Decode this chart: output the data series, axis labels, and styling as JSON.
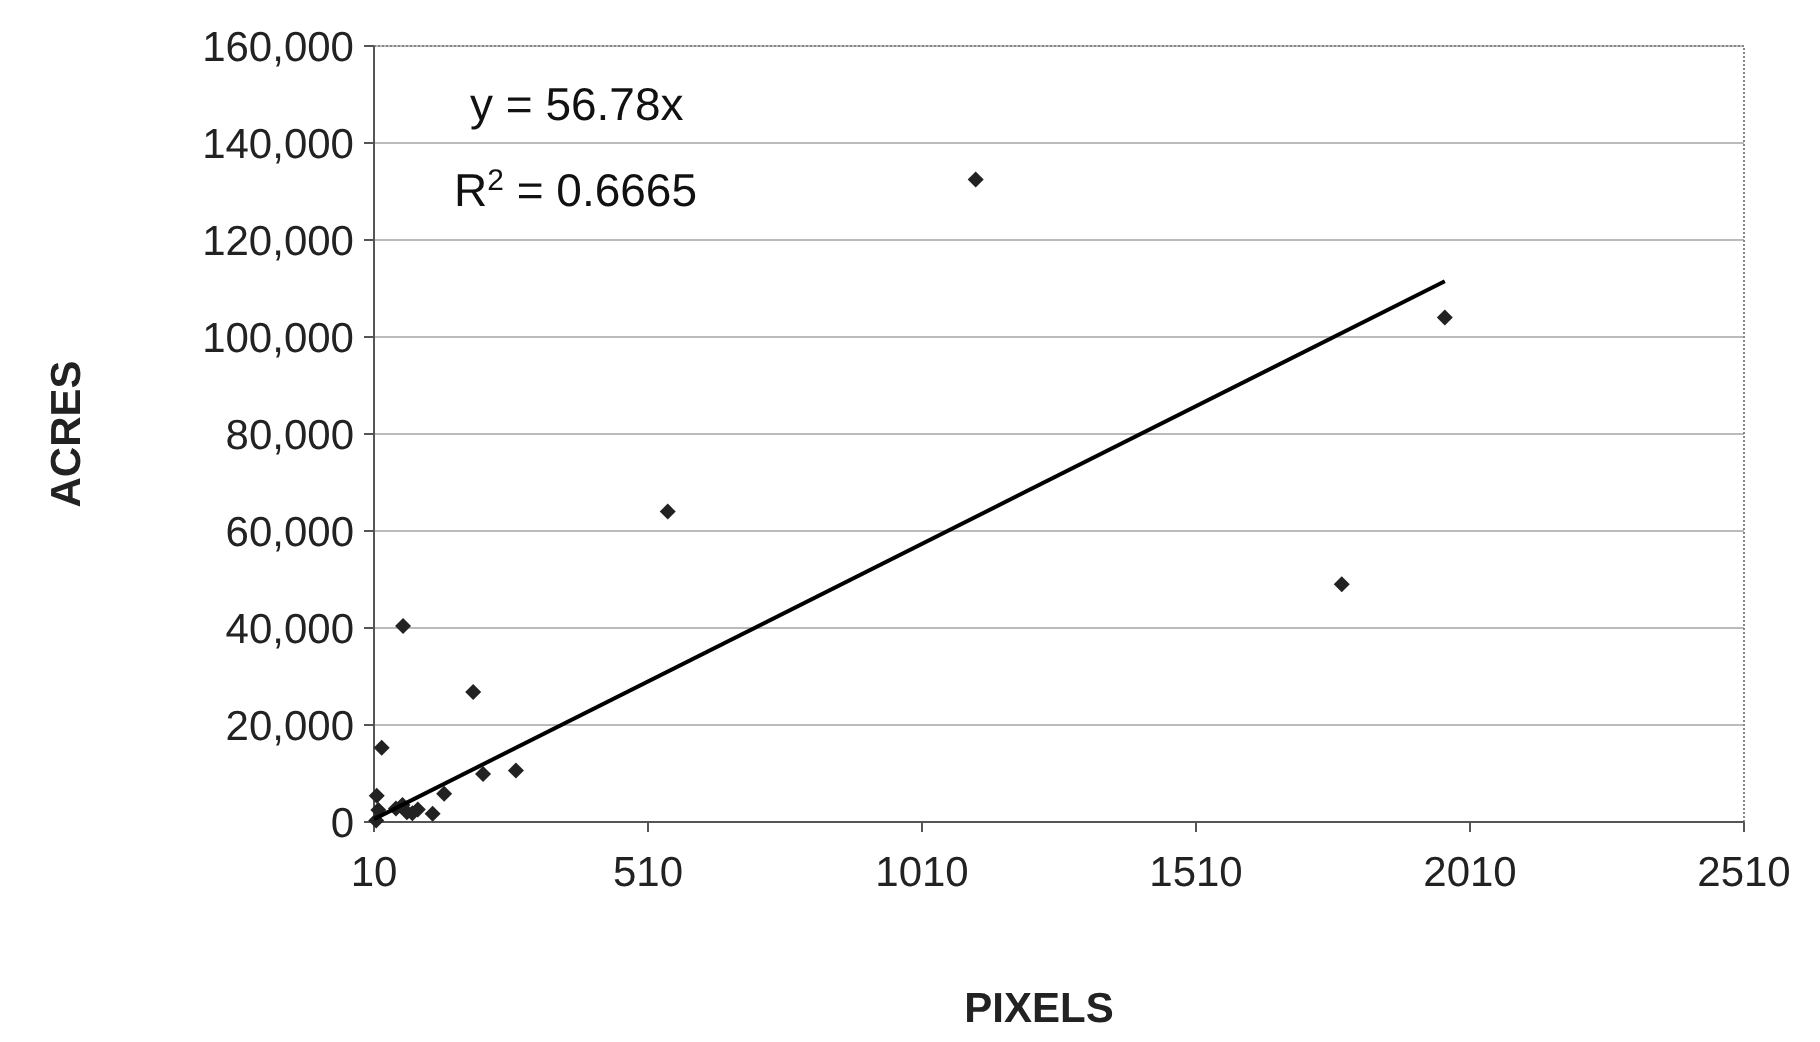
{
  "chart_data": {
    "type": "scatter",
    "xlabel": "PIXELS",
    "ylabel": "ACRES",
    "annotations": [
      "y = 56.78x",
      "R$^{2}$ = 0.6665"
    ],
    "xlim": [
      10,
      2510
    ],
    "xticks": [
      10,
      510,
      1010,
      1510,
      2010,
      2510
    ],
    "ylim": [
      0,
      160000
    ],
    "yticks": [
      {
        "value": 0,
        "label": "0"
      },
      {
        "value": 20000,
        "label": "20,000"
      },
      {
        "value": 40000,
        "label": "40,000"
      },
      {
        "value": 60000,
        "label": "60,000"
      },
      {
        "value": 80000,
        "label": "80,000"
      },
      {
        "value": 100000,
        "label": "100,000"
      },
      {
        "value": 120000,
        "label": "120,000"
      },
      {
        "value": 140000,
        "label": "140,000"
      },
      {
        "value": 160000,
        "label": "160,000"
      }
    ],
    "grid": "y",
    "marker": "diamond",
    "series": [
      {
        "color": "#222222",
        "x": [
          1108,
          1964,
          546,
          1776,
          63,
          191,
          24,
          209,
          269,
          138,
          117,
          15,
          18,
          62,
          70,
          80,
          14,
          50,
          90
        ],
        "values": [
          132500,
          104000,
          64000,
          49000,
          40400,
          26800,
          15300,
          9900,
          10600,
          5800,
          1700,
          5400,
          2500,
          3500,
          2000,
          1800,
          300,
          2800,
          2600
        ]
      },
      {
        "type": "line",
        "color": "#000000",
        "marker": "none",
        "x": [
          10,
          1964
        ],
        "values": [
          600,
          111500
        ]
      }
    ]
  }
}
